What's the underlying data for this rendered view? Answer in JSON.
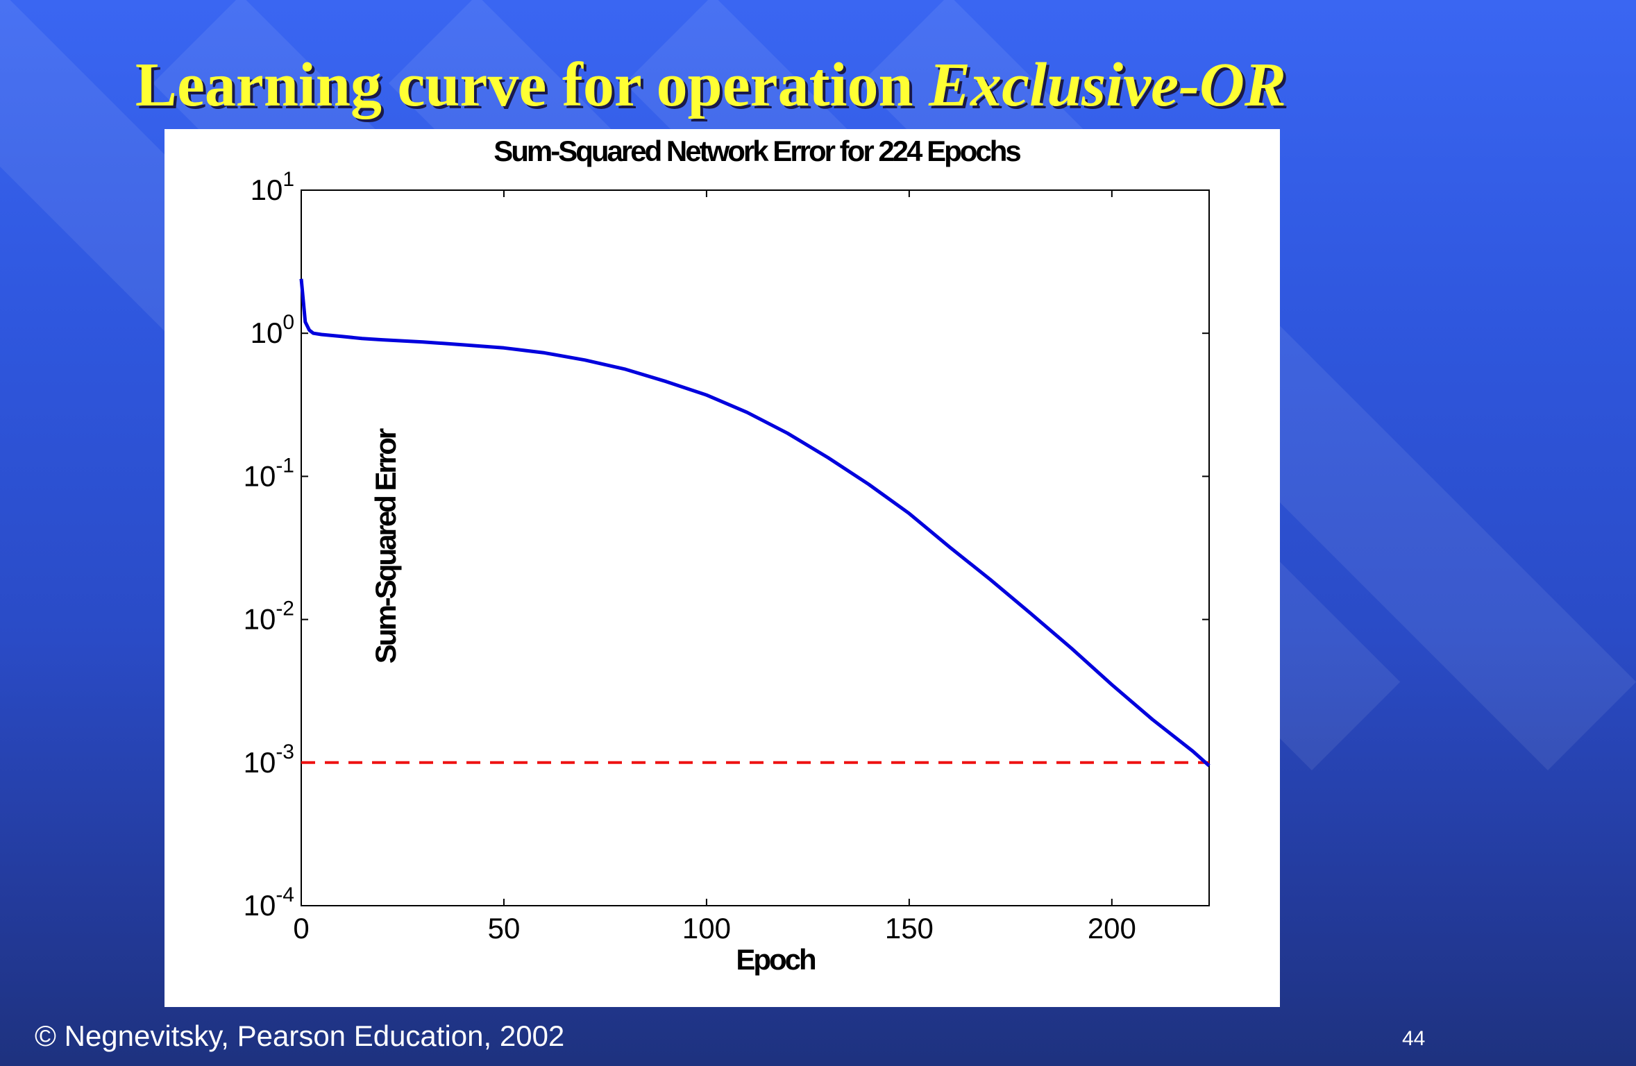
{
  "slide": {
    "title_main": "Learning curve for operation ",
    "title_italic": "Exclusive-OR",
    "footer": "© Negnevitsky, Pearson Education, 2002",
    "page_number": "44"
  },
  "colors": {
    "title": "#ffff33",
    "curve": "#0000dd",
    "goal": "#ee1111"
  },
  "chart_data": {
    "type": "line",
    "title": "Sum-Squared Network Error for 224 Epochs",
    "xlabel": "Epoch",
    "ylabel": "Sum-Squared Error",
    "xlim": [
      0,
      224
    ],
    "ylim": [
      0.0001,
      10
    ],
    "yscale": "log",
    "xticks": [
      0,
      50,
      100,
      150,
      200
    ],
    "yticks": [
      {
        "mantissa": "10",
        "exponent": "1"
      },
      {
        "mantissa": "10",
        "exponent": "0"
      },
      {
        "mantissa": "10",
        "exponent": "-1"
      },
      {
        "mantissa": "10",
        "exponent": "-2"
      },
      {
        "mantissa": "10",
        "exponent": "-3"
      },
      {
        "mantissa": "10",
        "exponent": "-4"
      }
    ],
    "grid": false,
    "series": [
      {
        "x": [
          0,
          1,
          2,
          3,
          5,
          10,
          15,
          20,
          30,
          40,
          50,
          60,
          70,
          80,
          90,
          100,
          110,
          120,
          130,
          140,
          150,
          160,
          170,
          180,
          190,
          200,
          210,
          220,
          224
        ],
        "y": [
          2.4,
          1.2,
          1.05,
          1.0,
          0.98,
          0.95,
          0.92,
          0.9,
          0.87,
          0.83,
          0.79,
          0.73,
          0.65,
          0.56,
          0.46,
          0.37,
          0.28,
          0.2,
          0.135,
          0.088,
          0.055,
          0.032,
          0.019,
          0.011,
          0.0063,
          0.0035,
          0.002,
          0.0012,
          0.00095
        ]
      }
    ],
    "goal_line": {
      "y": 0.001,
      "style": "dashed"
    }
  }
}
